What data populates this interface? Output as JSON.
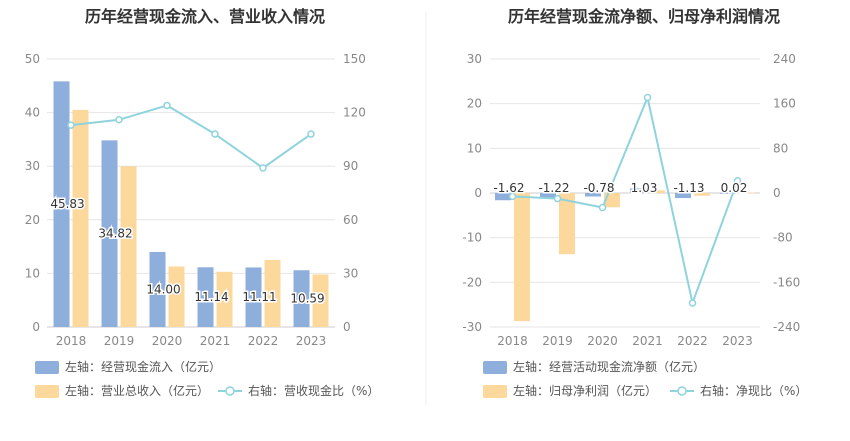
{
  "chart_data": [
    {
      "type": "bar",
      "title": "历年经营现金流入、营业收入情况",
      "categories": [
        "2018",
        "2019",
        "2020",
        "2021",
        "2022",
        "2023"
      ],
      "left_axis": {
        "ylim": [
          0,
          50
        ],
        "ticks": [
          "0",
          "10",
          "20",
          "30",
          "40",
          "50"
        ]
      },
      "right_axis": {
        "ylim": [
          0,
          150
        ],
        "ticks": [
          "0",
          "30",
          "60",
          "90",
          "120",
          "150"
        ]
      },
      "series": [
        {
          "name": "左轴：经营现金流入（亿元）",
          "type": "bar",
          "axis": "left",
          "color": "#8eaedc",
          "values": [
            45.83,
            34.82,
            14.0,
            11.14,
            11.11,
            10.59
          ],
          "labels": [
            "45.83",
            "34.82",
            "14.00",
            "11.14",
            "11.11",
            "10.59"
          ]
        },
        {
          "name": "左轴：营业总收入（亿元）",
          "type": "bar",
          "axis": "left",
          "color": "#fdd89d",
          "values": [
            40.5,
            30.0,
            11.3,
            10.3,
            12.5,
            9.8
          ]
        },
        {
          "name": "右轴：营收现金比（%）",
          "type": "line",
          "axis": "right",
          "color": "#8fd3dd",
          "values": [
            113,
            116,
            124,
            108,
            89,
            108
          ]
        }
      ],
      "grid": true,
      "legend": "bottom-left"
    },
    {
      "type": "bar",
      "title": "历年经营现金流净额、归母净利润情况",
      "categories": [
        "2018",
        "2019",
        "2020",
        "2021",
        "2022",
        "2023"
      ],
      "left_axis": {
        "ylim": [
          -30,
          30
        ],
        "ticks": [
          "-30",
          "-20",
          "-10",
          "0",
          "10",
          "20",
          "30"
        ]
      },
      "right_axis": {
        "ylim": [
          -240,
          240
        ],
        "ticks": [
          "-240",
          "-160",
          "-80",
          "0",
          "80",
          "160",
          "240"
        ]
      },
      "series": [
        {
          "name": "左轴：经营活动现金流净额（亿元）",
          "type": "bar",
          "axis": "left",
          "color": "#8eaedc",
          "values": [
            -1.62,
            -1.22,
            -0.78,
            1.03,
            -1.13,
            0.02
          ],
          "labels": [
            "-1.62",
            "-1.22",
            "-0.78",
            "1.03",
            "-1.13",
            "0.02"
          ]
        },
        {
          "name": "左轴：归母净利润（亿元）",
          "type": "bar",
          "axis": "left",
          "color": "#fdd89d",
          "values": [
            -28.7,
            -13.7,
            -3.2,
            0.6,
            -0.6,
            0.1
          ]
        },
        {
          "name": "右轴：净现比（%）",
          "type": "line",
          "axis": "right",
          "color": "#8fd3dd",
          "values": [
            -6,
            -10,
            -26,
            171,
            -197,
            22
          ]
        }
      ],
      "grid": true,
      "legend": "bottom-left"
    }
  ]
}
